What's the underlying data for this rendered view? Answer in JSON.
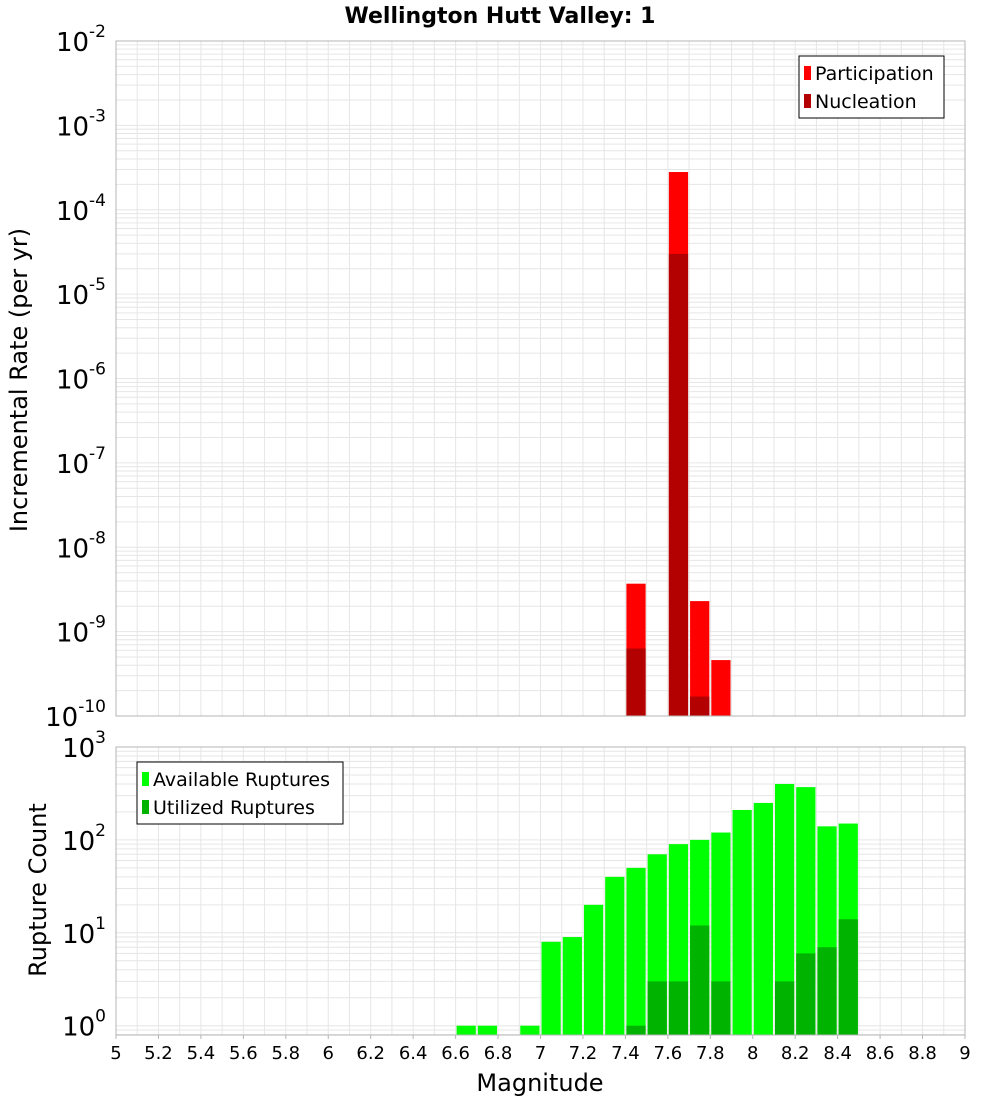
{
  "title": "Wellington Hutt Valley: 1",
  "xlabel": "Magnitude",
  "colors": {
    "participation": "#ff0000",
    "nucleation": "#b30000",
    "available": "#00ff00",
    "utilized": "#00b300",
    "grid": "#e6e6e6",
    "frame": "#b4b4b4"
  },
  "chart_data": [
    {
      "type": "bar",
      "panel": "top",
      "ylabel": "Incremental Rate (per yr)",
      "yscale": "log",
      "xlim": [
        5,
        9
      ],
      "ylim_exp": [
        -10,
        -2
      ],
      "y_tick_base": "10",
      "y_tick_exponents": [
        "-10",
        "-9",
        "-8",
        "-7",
        "-6",
        "-5",
        "-4",
        "-3",
        "-2"
      ],
      "legend": [
        "Participation",
        "Nucleation"
      ],
      "legend_position": "top-right",
      "series": [
        {
          "name": "Participation",
          "x": [
            7.45,
            7.65,
            7.75,
            7.85
          ],
          "values": [
            3.7e-09,
            0.00028,
            2.3e-09,
            4.6e-10
          ]
        },
        {
          "name": "Nucleation",
          "x": [
            7.45,
            7.65,
            7.75
          ],
          "values": [
            6.3e-10,
            3e-05,
            1.7e-10
          ]
        }
      ]
    },
    {
      "type": "bar",
      "panel": "bottom",
      "ylabel": "Rupture Count",
      "yscale": "log",
      "xlim": [
        5,
        9
      ],
      "ylim_exp": [
        -0.1,
        3
      ],
      "y_tick_base": "10",
      "y_tick_exponents": [
        "0",
        "1",
        "2",
        "3"
      ],
      "legend": [
        "Available Ruptures",
        "Utilized Ruptures"
      ],
      "legend_position": "top-left",
      "x_ticks": [
        "5",
        "5.2",
        "5.4",
        "5.6",
        "5.8",
        "6",
        "6.2",
        "6.4",
        "6.6",
        "6.8",
        "7",
        "7.2",
        "7.4",
        "7.6",
        "7.8",
        "8",
        "8.2",
        "8.4",
        "8.6",
        "8.8",
        "9"
      ],
      "series": [
        {
          "name": "Available Ruptures",
          "x": [
            6.65,
            6.75,
            6.95,
            7.05,
            7.15,
            7.25,
            7.35,
            7.45,
            7.55,
            7.65,
            7.75,
            7.85,
            7.95,
            8.05,
            8.15,
            8.25,
            8.35,
            8.45
          ],
          "values": [
            1,
            1,
            1,
            8,
            9,
            20,
            40,
            50,
            70,
            90,
            100,
            120,
            210,
            250,
            400,
            370,
            140,
            150
          ]
        },
        {
          "name": "Utilized Ruptures",
          "x": [
            7.45,
            7.55,
            7.65,
            7.75,
            7.85,
            8.15,
            8.25,
            8.35,
            8.45
          ],
          "values": [
            1,
            3,
            3,
            12,
            3,
            3,
            6,
            7,
            14
          ]
        }
      ]
    }
  ]
}
